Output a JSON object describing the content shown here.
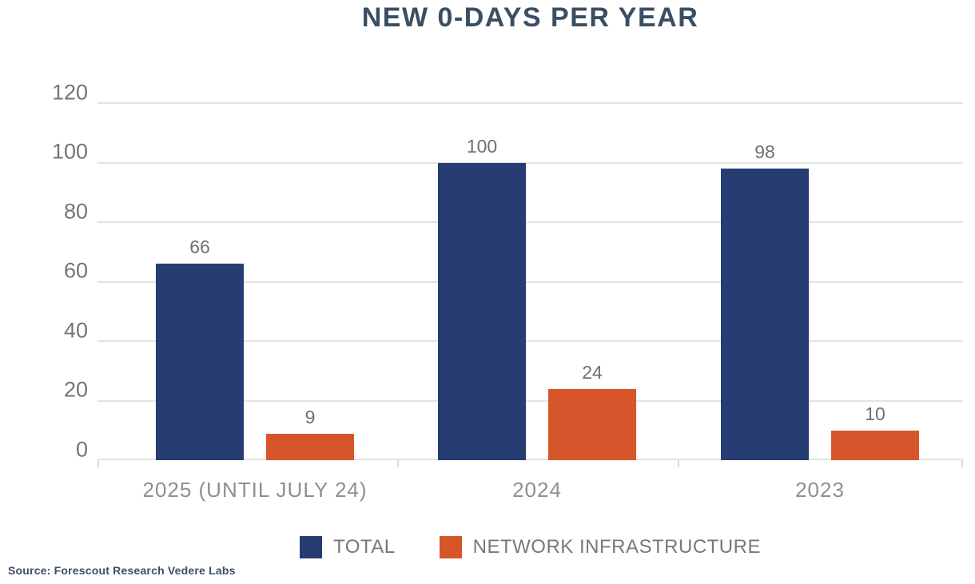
{
  "title": "NEW 0-DAYS PER YEAR",
  "source": "Source: Forescout Research Vedere Labs",
  "colors": {
    "total_series": "#263C72",
    "network_series": "#D7552A",
    "title_text": "#3A4E63",
    "gridline": "#E3E3E3",
    "axis_label": "#757575",
    "value_label": "#6E7072",
    "category_label": "#8E8F91",
    "legend_label": "#77787B",
    "source_text": "#3D4F66"
  },
  "chart_data": {
    "type": "bar",
    "title": "NEW 0-DAYS PER YEAR",
    "categories": [
      "2025 (UNTIL JULY 24)",
      "2024",
      "2023"
    ],
    "series": [
      {
        "name": "TOTAL",
        "color": "#263C72",
        "values": [
          66,
          100,
          98
        ]
      },
      {
        "name": "NETWORK INFRASTRUCTURE",
        "color": "#D7552A",
        "values": [
          9,
          24,
          10
        ]
      }
    ],
    "xlabel": "",
    "ylabel": "",
    "ylim": [
      0,
      120
    ],
    "yticks": [
      0,
      20,
      40,
      60,
      80,
      100,
      120
    ],
    "grid": true,
    "data_labels": true,
    "legend_position": "bottom"
  },
  "legend": {
    "items": [
      {
        "label": "TOTAL",
        "color": "#263C72"
      },
      {
        "label": "NETWORK INFRASTRUCTURE",
        "color": "#D7552A"
      }
    ]
  }
}
